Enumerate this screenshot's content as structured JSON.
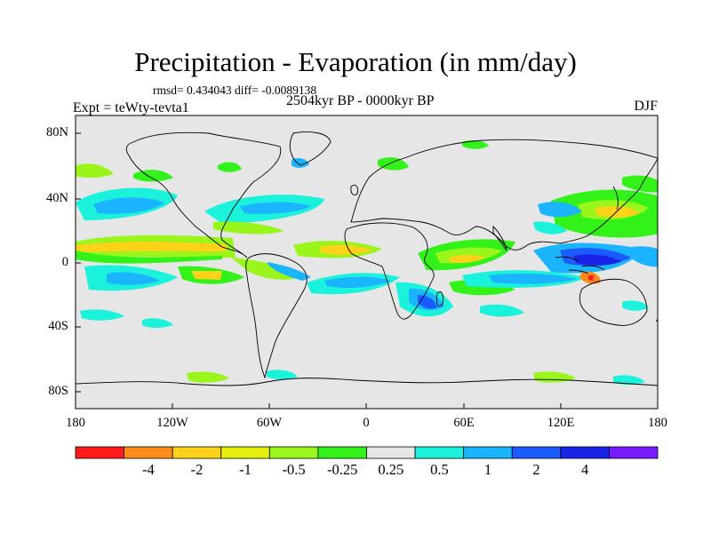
{
  "title": "Precipitation - Evaporation (in mm/day)",
  "stats": "rmsd= 0.434043 diff= -0.0089138",
  "period": "2504kyr BP - 0000kyr BP",
  "experiment": "Expt = teWty-tevta1",
  "season": "DJF",
  "axes": {
    "y_ticks": [
      "80N",
      "40N",
      "0",
      "40S",
      "80S"
    ],
    "x_ticks": [
      "180",
      "120W",
      "60W",
      "0",
      "60E",
      "120E",
      "180"
    ]
  },
  "colorbar": {
    "colors": [
      "#ff1a1a",
      "#ff8c1a",
      "#ffd21a",
      "#e6f00f",
      "#99f51a",
      "#33f21a",
      "#e6e6e6",
      "#1af2dc",
      "#1ab4ff",
      "#1a5cff",
      "#1a24e6",
      "#7a1aff"
    ],
    "labels": [
      "-4",
      "-2",
      "-1",
      "-0.5",
      "-0.25",
      "0.25",
      "0.5",
      "1",
      "2",
      "4"
    ]
  },
  "colors": {
    "land_ocean_background": "#e6e6e6",
    "coastline": "#000000"
  }
}
